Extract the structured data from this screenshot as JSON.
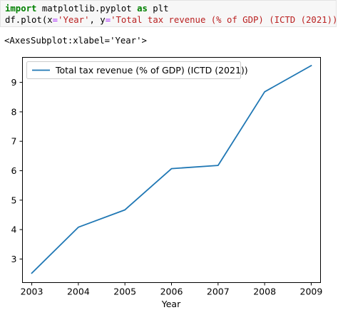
{
  "code": {
    "line1": {
      "kw1": "import",
      "mod": " matplotlib.pyplot ",
      "kw2": "as",
      "alias": " plt"
    },
    "line2": {
      "pre": "df.plot(x",
      "eq1": "=",
      "xval": "'Year'",
      "mid": ", y",
      "eq2": "=",
      "yval": "'Total tax revenue (% of GDP) (ICTD (2021))'",
      "post": ")"
    }
  },
  "output_text": "<AxesSubplot:xlabel='Year'>",
  "colors": {
    "line": "#1f77b4"
  },
  "chart_data": {
    "type": "line",
    "xlabel": "Year",
    "ylabel": "",
    "xlim": [
      2002.8,
      2009.2
    ],
    "ylim": [
      2.2,
      9.85
    ],
    "x_ticks": [
      2003,
      2004,
      2005,
      2006,
      2007,
      2008,
      2009
    ],
    "y_ticks": [
      3,
      4,
      5,
      6,
      7,
      8,
      9
    ],
    "legend_position": "top-left",
    "series": [
      {
        "name": "Total tax revenue (% of GDP) (ICTD (2021))",
        "x": [
          2003,
          2004,
          2005,
          2006,
          2007,
          2008,
          2009
        ],
        "y": [
          2.52,
          4.08,
          4.67,
          6.07,
          6.18,
          8.68,
          9.57
        ]
      }
    ]
  }
}
